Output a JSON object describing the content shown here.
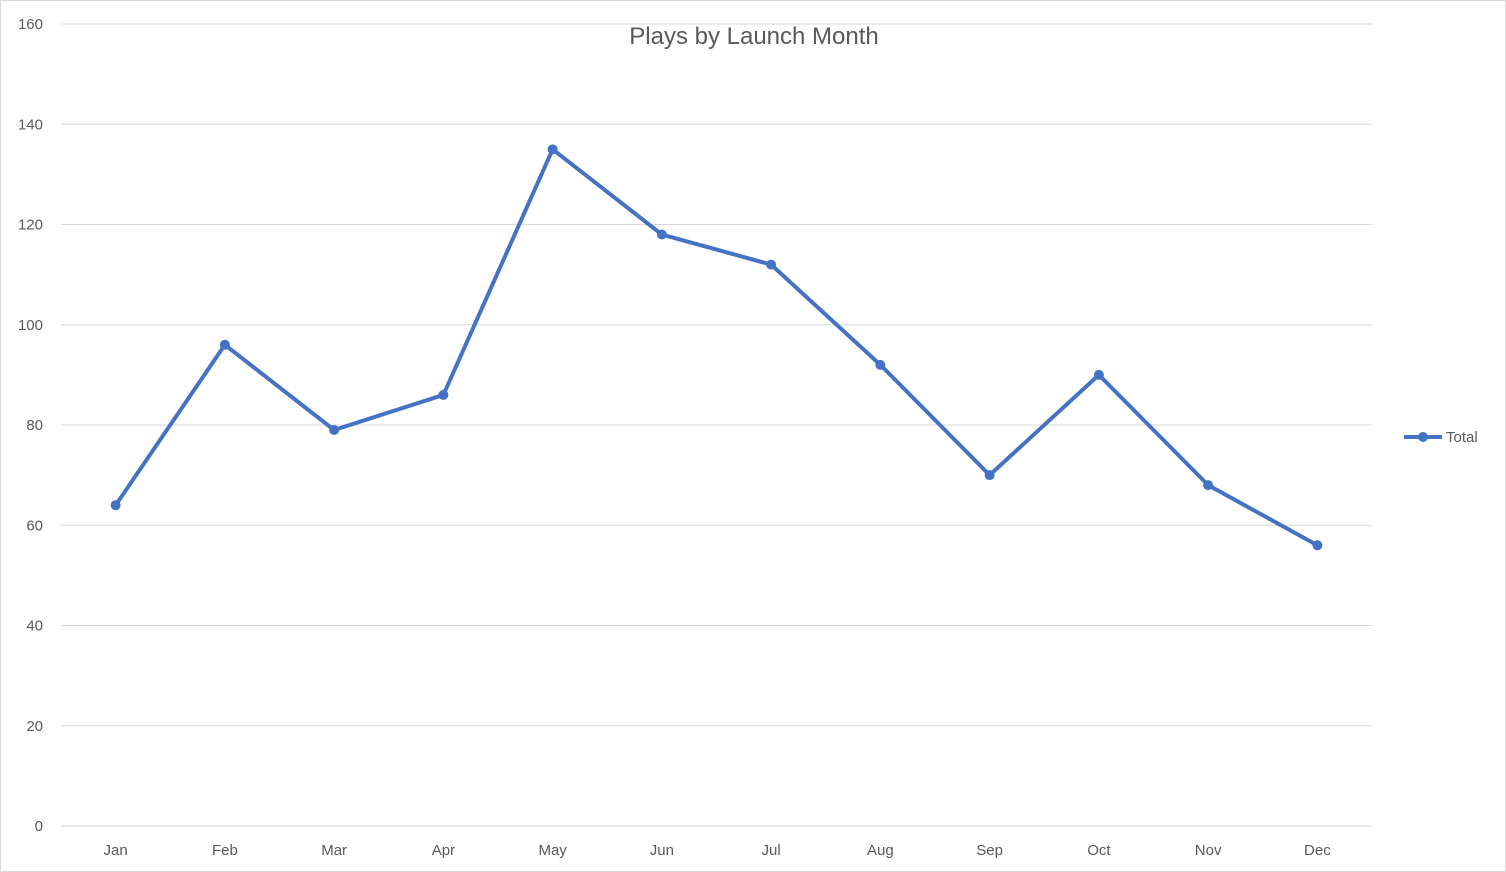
{
  "chart_data": {
    "type": "line",
    "title": "Plays by Launch Month",
    "xlabel": "",
    "ylabel": "",
    "categories": [
      "Jan",
      "Feb",
      "Mar",
      "Apr",
      "May",
      "Jun",
      "Jul",
      "Aug",
      "Sep",
      "Oct",
      "Nov",
      "Dec"
    ],
    "series": [
      {
        "name": "Total",
        "values": [
          64,
          96,
          79,
          86,
          135,
          118,
          112,
          92,
          70,
          90,
          68,
          56
        ]
      }
    ],
    "ylim": [
      0,
      160
    ],
    "yticks": [
      0,
      20,
      40,
      60,
      80,
      100,
      120,
      140,
      160
    ],
    "grid": true,
    "legend_position": "right",
    "series_color": "#4472C4",
    "gridline_color": "#d9d9d9",
    "text_color": "#595959"
  }
}
